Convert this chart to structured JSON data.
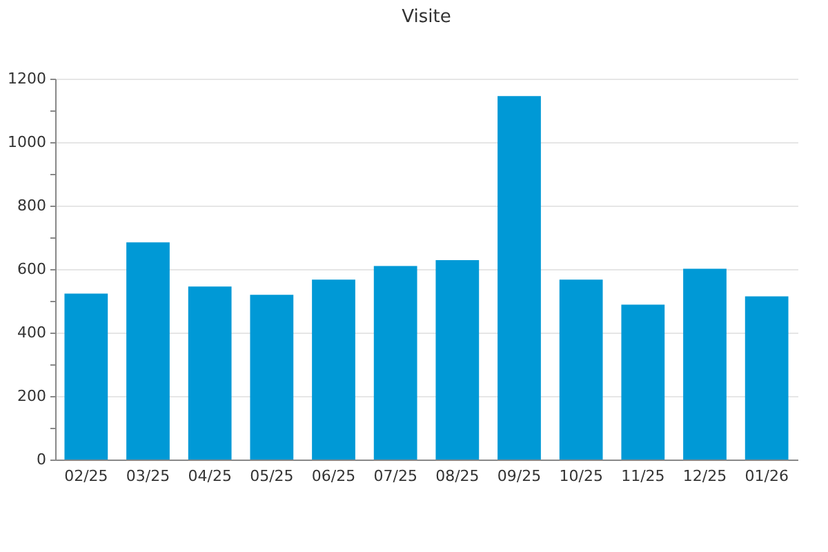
{
  "chart_data": {
    "type": "bar",
    "title": "Visite",
    "categories": [
      "02/25",
      "03/25",
      "04/25",
      "05/25",
      "06/25",
      "07/25",
      "08/25",
      "09/25",
      "10/25",
      "11/25",
      "12/25",
      "01/26"
    ],
    "values": [
      523,
      684,
      545,
      519,
      567,
      610,
      628,
      1145,
      567,
      488,
      601,
      514
    ],
    "color": "#0099d6",
    "ylim": [
      0,
      1200
    ],
    "yticks": [
      0,
      {
        "value": 100,
        "label": null
      },
      200,
      {
        "value": 300,
        "label": null
      },
      400,
      {
        "value": 500,
        "label": null
      },
      600,
      {
        "value": 700,
        "label": null
      },
      800,
      {
        "value": 900,
        "label": null
      },
      1000,
      {
        "value": 1100,
        "label": null
      },
      1200
    ],
    "grid": "y"
  }
}
